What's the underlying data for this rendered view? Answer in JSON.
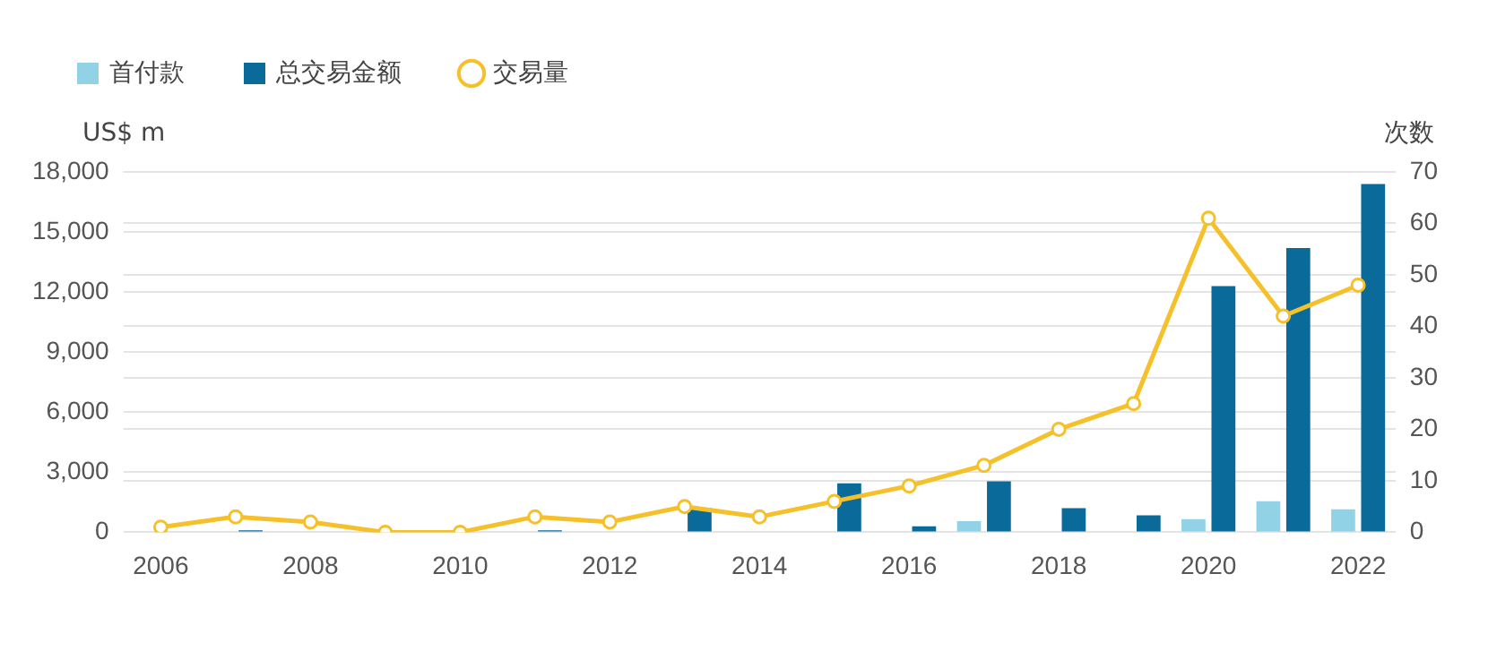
{
  "chart_data": {
    "type": "bar",
    "ylabel": "US$ m",
    "y2label": "次数",
    "categories": [
      "2006",
      null,
      "2008",
      null,
      "2010",
      null,
      "2012",
      null,
      "2014",
      null,
      "2016",
      null,
      "2018",
      null,
      "2020",
      null,
      "2022"
    ],
    "series": [
      {
        "name": "首付款",
        "color": "#92d2e6",
        "values": [
          0,
          0,
          0,
          0,
          0,
          0,
          0,
          0,
          0,
          0,
          0,
          550,
          0,
          0,
          650,
          1550,
          1150
        ]
      },
      {
        "name": "总交易金额",
        "color": "#0a6b9b",
        "values": [
          0,
          100,
          0,
          0,
          0,
          100,
          0,
          1200,
          0,
          2450,
          300,
          2550,
          1200,
          850,
          12300,
          14200,
          17400
        ]
      },
      {
        "name": "交易量",
        "type": "line",
        "axis": "y2",
        "color": "#f5c02a",
        "values": [
          1,
          3,
          2,
          0,
          0,
          3,
          2,
          5,
          3,
          6,
          9,
          13,
          20,
          25,
          61,
          42,
          48
        ]
      }
    ],
    "ylim": [
      0,
      18000
    ],
    "yticks": [
      0,
      {
        "value": 3000,
        "label": "3,000"
      },
      {
        "value": 6000,
        "label": "6,000"
      },
      {
        "value": 9000,
        "label": "9,000"
      },
      {
        "value": 12000,
        "label": "12,000"
      },
      {
        "value": 15000,
        "label": "15,000"
      },
      {
        "value": 18000,
        "label": "18,000"
      }
    ],
    "y2lim": [
      0,
      70
    ],
    "y2ticks": [
      0,
      10,
      20,
      30,
      40,
      50,
      60,
      70
    ],
    "grid": true,
    "legend": "top left",
    "marker": "circle"
  }
}
